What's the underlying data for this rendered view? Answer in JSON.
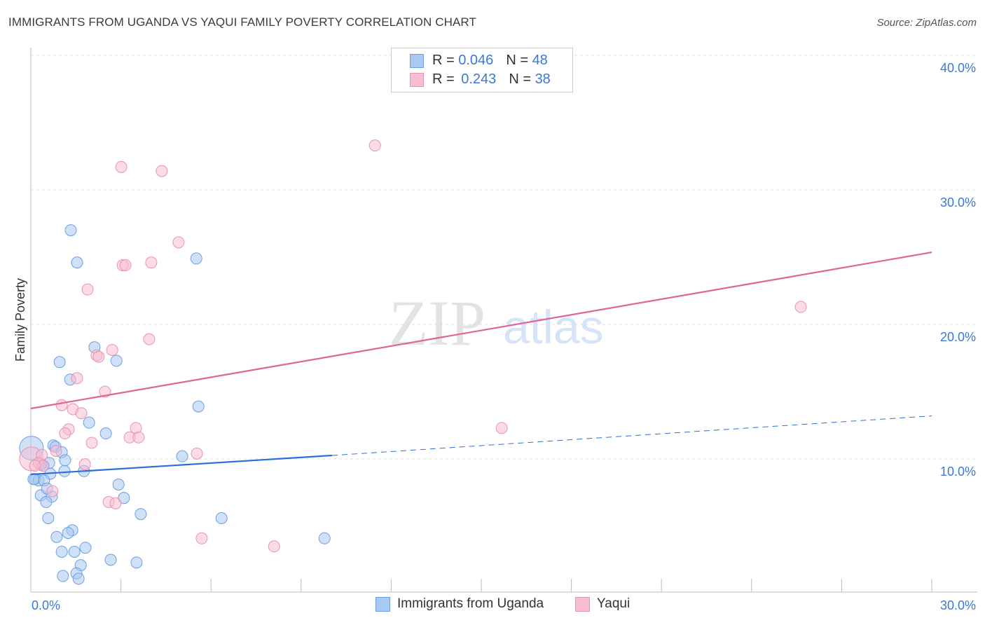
{
  "title": "IMMIGRANTS FROM UGANDA VS YAQUI FAMILY POVERTY CORRELATION CHART",
  "source": "Source: ZipAtlas.com",
  "legend": [
    {
      "r_label": "R =",
      "r": "0.046",
      "n_label": "N =",
      "n": "48"
    },
    {
      "r_label": "R =",
      "r": "0.243",
      "n_label": "N =",
      "n": "38"
    }
  ],
  "bottom_legend": [
    "Immigrants from Uganda",
    "Yaqui"
  ],
  "colors": {
    "blue_fill": "#a9c9f1",
    "blue_stroke": "#6b9fe2",
    "blue_line": "#2a6fdb",
    "pink_fill": "#f7bdd1",
    "pink_stroke": "#e893b1",
    "pink_line": "#e0649a",
    "tick_text": "#3a78d8"
  },
  "chart_data": {
    "type": "scatter",
    "title": "IMMIGRANTS FROM UGANDA VS YAQUI FAMILY POVERTY CORRELATION CHART",
    "xlabel": "",
    "ylabel": "Family Poverty",
    "xlim": [
      0,
      30
    ],
    "ylim": [
      0,
      40
    ],
    "x_tick_labels": [
      "0.0%",
      "30.0%"
    ],
    "y_ticks": [
      10,
      20,
      30,
      40
    ],
    "y_tick_labels": [
      "10.0%",
      "20.0%",
      "30.0%",
      "40.0%"
    ],
    "grid": true,
    "legend_placement": "top-center",
    "series": [
      {
        "name": "Immigrants from Uganda",
        "points": [
          [
            0.02,
            10.8
          ],
          [
            1.33,
            27.0
          ],
          [
            1.54,
            24.6
          ],
          [
            5.51,
            24.9
          ],
          [
            2.12,
            18.3
          ],
          [
            0.96,
            17.2
          ],
          [
            2.85,
            17.3
          ],
          [
            1.31,
            15.9
          ],
          [
            5.58,
            13.9
          ],
          [
            1.94,
            12.7
          ],
          [
            2.5,
            11.9
          ],
          [
            0.75,
            11.0
          ],
          [
            0.82,
            10.9
          ],
          [
            1.03,
            10.5
          ],
          [
            1.14,
            9.9
          ],
          [
            0.61,
            9.7
          ],
          [
            0.4,
            9.5
          ],
          [
            1.12,
            9.1
          ],
          [
            1.77,
            9.1
          ],
          [
            5.04,
            10.2
          ],
          [
            0.65,
            8.9
          ],
          [
            0.14,
            8.5
          ],
          [
            0.26,
            8.4
          ],
          [
            0.44,
            8.4
          ],
          [
            2.92,
            8.1
          ],
          [
            0.33,
            7.3
          ],
          [
            0.7,
            7.2
          ],
          [
            0.51,
            6.8
          ],
          [
            3.1,
            7.1
          ],
          [
            0.58,
            5.6
          ],
          [
            3.66,
            5.9
          ],
          [
            6.35,
            5.6
          ],
          [
            1.38,
            4.7
          ],
          [
            1.24,
            4.5
          ],
          [
            0.86,
            4.2
          ],
          [
            9.78,
            4.1
          ],
          [
            1.82,
            3.4
          ],
          [
            1.03,
            3.1
          ],
          [
            1.45,
            3.1
          ],
          [
            2.66,
            2.5
          ],
          [
            3.52,
            2.3
          ],
          [
            1.66,
            2.1
          ],
          [
            1.52,
            1.5
          ],
          [
            1.07,
            1.3
          ],
          [
            1.59,
            1.1
          ],
          [
            0.33,
            9.6
          ],
          [
            0.09,
            8.5
          ],
          [
            0.54,
            7.8
          ]
        ],
        "trend": {
          "solid": [
            [
              0,
              8.85
            ],
            [
              10.03,
              10.26
            ]
          ],
          "dashed": [
            [
              10.03,
              10.26
            ],
            [
              30,
              13.2
            ]
          ]
        }
      },
      {
        "name": "Yaqui",
        "points": [
          [
            0.02,
            10.0
          ],
          [
            11.46,
            33.3
          ],
          [
            3.01,
            31.7
          ],
          [
            4.36,
            31.4
          ],
          [
            4.92,
            26.1
          ],
          [
            3.06,
            24.4
          ],
          [
            3.15,
            24.4
          ],
          [
            4.01,
            24.6
          ],
          [
            1.89,
            22.6
          ],
          [
            25.64,
            21.3
          ],
          [
            3.94,
            18.9
          ],
          [
            2.71,
            18.1
          ],
          [
            2.19,
            17.7
          ],
          [
            2.26,
            17.6
          ],
          [
            1.54,
            16.0
          ],
          [
            2.47,
            15.0
          ],
          [
            1.03,
            14.0
          ],
          [
            1.4,
            13.7
          ],
          [
            1.68,
            13.4
          ],
          [
            3.5,
            12.3
          ],
          [
            1.26,
            12.2
          ],
          [
            15.68,
            12.3
          ],
          [
            1.14,
            11.9
          ],
          [
            3.29,
            11.6
          ],
          [
            3.59,
            11.6
          ],
          [
            2.03,
            11.2
          ],
          [
            5.53,
            10.4
          ],
          [
            0.84,
            10.6
          ],
          [
            0.37,
            10.3
          ],
          [
            0.26,
            9.7
          ],
          [
            0.42,
            9.5
          ],
          [
            1.8,
            9.6
          ],
          [
            0.72,
            7.6
          ],
          [
            2.59,
            6.8
          ],
          [
            2.82,
            6.7
          ],
          [
            5.69,
            4.1
          ],
          [
            8.1,
            3.5
          ],
          [
            0.14,
            9.5
          ]
        ],
        "trend": {
          "solid": [
            [
              0,
              13.75
            ],
            [
              30,
              25.36
            ]
          ]
        }
      }
    ]
  }
}
